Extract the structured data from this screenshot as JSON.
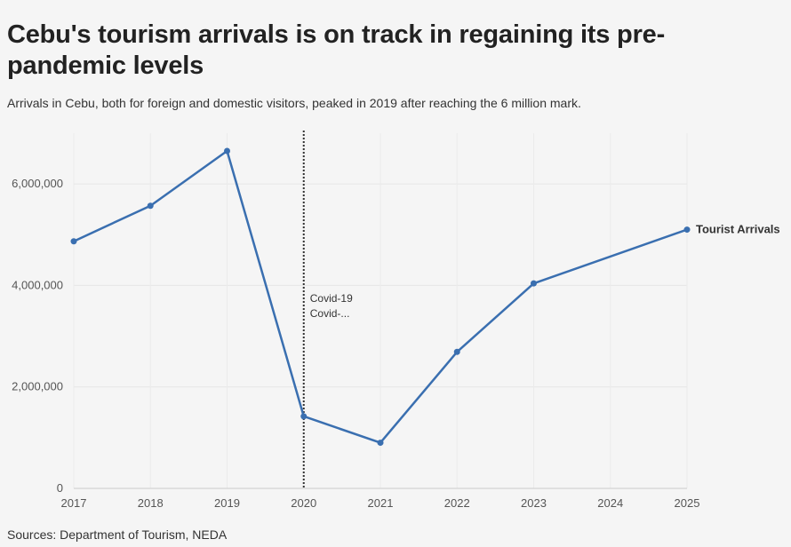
{
  "header": {
    "title": "Cebu's tourism arrivals is on track in regaining its pre-pandemic levels",
    "subtitle": "Arrivals in Cebu, both for foreign and domestic visitors, peaked in 2019 after reaching the 6 million mark."
  },
  "footer": {
    "source": "Sources: Department of Tourism, NEDA"
  },
  "chart_data": {
    "type": "line",
    "x": [
      2017,
      2018,
      2019,
      2020,
      2021,
      2022,
      2023,
      2025
    ],
    "x_ticks": [
      "2017",
      "2018",
      "2019",
      "2020",
      "2021",
      "2022",
      "2023",
      "2024",
      "2025"
    ],
    "xlim": [
      2017,
      2025
    ],
    "ylim": [
      0,
      7000000
    ],
    "y_ticks": [
      0,
      2000000,
      4000000,
      6000000
    ],
    "y_tick_labels": [
      "0",
      "2,000,000",
      "4,000,000",
      "6,000,000"
    ],
    "grid": true,
    "series": [
      {
        "name": "Tourist Arrivals",
        "color": "#3a6fb0",
        "values": [
          4870000,
          5570000,
          6650000,
          1420000,
          900000,
          2690000,
          4040000,
          5100000
        ]
      }
    ],
    "annotations": [
      {
        "x": 2020,
        "lines": [
          "Covid-19",
          "Covid-..."
        ]
      }
    ]
  }
}
